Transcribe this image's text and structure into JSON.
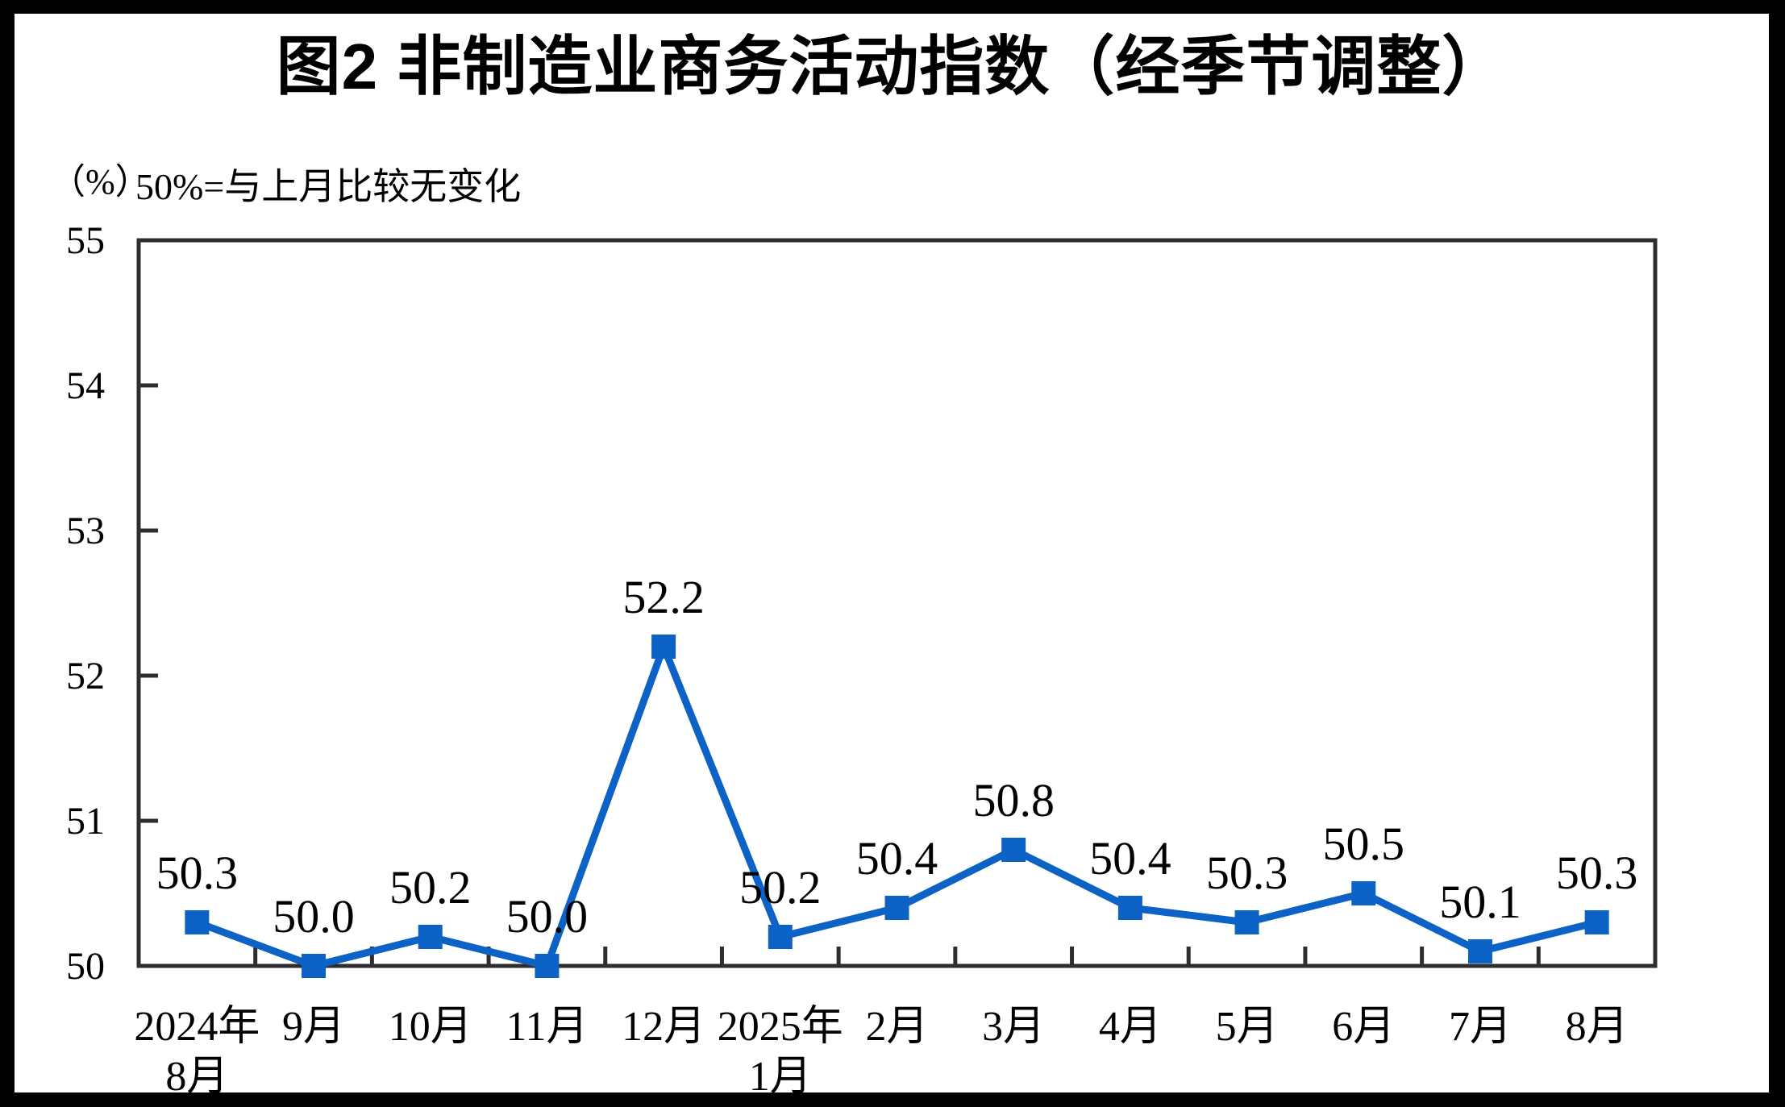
{
  "title": "图2 非制造业商务活动指数（经季节调整）",
  "subtitle": {
    "unit": "（%）",
    "note": "50%=与上月比较无变化"
  },
  "chart_data": {
    "type": "line",
    "title": "图2 非制造业商务活动指数（经季节调整）",
    "ylabel": "（%）",
    "annotation": "50%=与上月比较无变化",
    "categories": [
      [
        "2024年",
        "8月"
      ],
      [
        "9月"
      ],
      [
        "10月"
      ],
      [
        "11月"
      ],
      [
        "12月"
      ],
      [
        "2025年",
        "1月"
      ],
      [
        "2月"
      ],
      [
        "3月"
      ],
      [
        "4月"
      ],
      [
        "5月"
      ],
      [
        "6月"
      ],
      [
        "7月"
      ],
      [
        "8月"
      ]
    ],
    "values": [
      50.3,
      50.0,
      50.2,
      50.0,
      52.2,
      50.2,
      50.4,
      50.8,
      50.4,
      50.3,
      50.5,
      50.1,
      50.3
    ],
    "data_labels": [
      "50.3",
      "50.0",
      "50.2",
      "50.0",
      "52.2",
      "50.2",
      "50.4",
      "50.8",
      "50.4",
      "50.3",
      "50.5",
      "50.1",
      "50.3"
    ],
    "ylim": [
      50,
      55
    ],
    "ytick_labels": [
      "50",
      "51",
      "52",
      "53",
      "54",
      "55"
    ],
    "inner_ytick_values": [
      51,
      52,
      53,
      54
    ],
    "grid": false,
    "legend": "none",
    "marker": "square",
    "line_color": "#0d62c6",
    "axis_color": "#2e2e2e",
    "label_color": "#000000"
  }
}
